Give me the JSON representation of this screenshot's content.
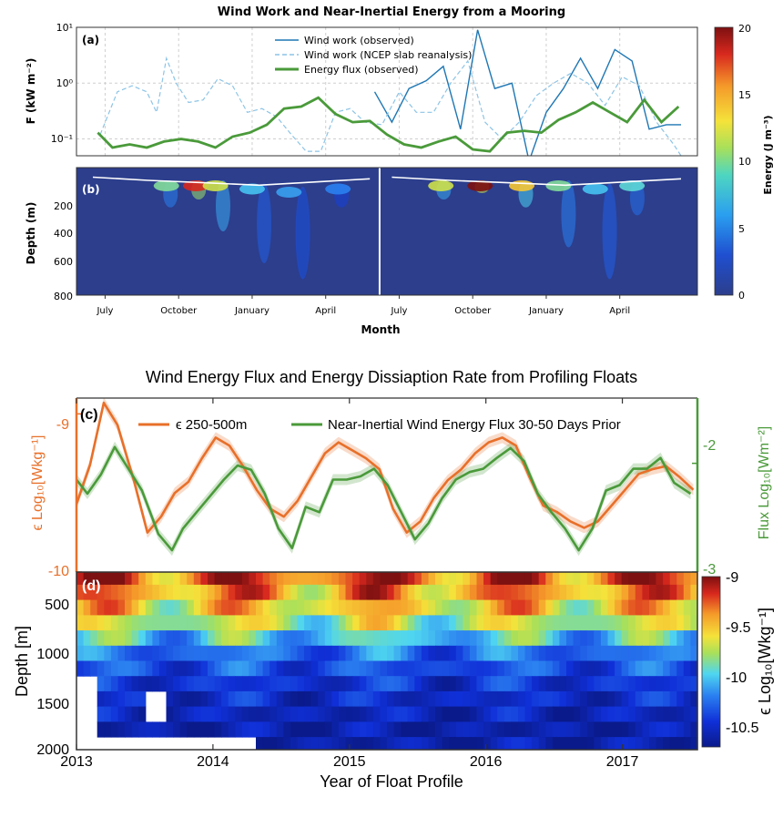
{
  "top_figure": {
    "title": "Wind Work and Near-Inertial Energy from a Mooring",
    "panel_a_letter": "(a)",
    "panel_b_letter": "(b)",
    "a_ylabel": "F (kW m⁻²)",
    "a_ytick_labels": [
      "10¹",
      "10⁰",
      "10⁻¹"
    ],
    "b_ylabel": "Depth (m)",
    "b_ytick_labels": [
      "200",
      "400",
      "600",
      "800"
    ],
    "xlabel": "Month",
    "month_labels": [
      "July",
      "October",
      "January",
      "April",
      "July",
      "October",
      "January",
      "April"
    ],
    "colorbar_label": "Energy (J m⁻³)",
    "colorbar_ticks": [
      "20",
      "15",
      "10",
      "5",
      "0"
    ],
    "legend": [
      "Wind work (observed)",
      "Wind work (NCEP slab reanalysis)",
      "Energy flux (observed)"
    ],
    "colors": {
      "wind_obs": "#1f77b4",
      "wind_ncep": "#8cc4e6",
      "energy_flux": "#4a9a3a",
      "field_bg": "#2c3e8c"
    }
  },
  "bottom_figure": {
    "title": "Wind Energy Flux and Energy Dissiaption Rate from Profiling Floats",
    "panel_c_letter": "(c)",
    "panel_d_letter": "(d)",
    "c_left_ylabel": "ϵ Log₁₀[Wkg⁻¹]",
    "c_right_ylabel": "Flux Log₁₀[Wm⁻²]",
    "c_left_ticks": [
      "-9",
      "-10"
    ],
    "c_right_ticks": [
      "-2",
      "-3"
    ],
    "legend": [
      "ϵ 250-500m",
      "Near-Inertial Wind Energy Flux 30-50 Days Prior"
    ],
    "d_ylabel": "Depth [m]",
    "d_ytick_labels": [
      "500",
      "1000",
      "1500",
      "2000"
    ],
    "xlabel": "Year of Float Profile",
    "year_labels": [
      "2013",
      "2014",
      "2015",
      "2016",
      "2017"
    ],
    "colorbar_label": "ϵ Log₁₀[Wkg⁻¹]",
    "colorbar_ticks": [
      "-9",
      "-9.5",
      "-10",
      "-10.5"
    ],
    "colors": {
      "epsilon": "#e8702a",
      "flux": "#4a9a3a"
    }
  },
  "chart_data": [
    {
      "type": "line",
      "panel": "(a)",
      "title": "Wind Work and Near-Inertial Energy from a Mooring",
      "ylabel": "F (kW m^-2)",
      "yscale": "log",
      "ylim": [
        0.05,
        10
      ],
      "grid": true,
      "legend_position": "top-center",
      "x_unit": "month index (0 = start of July, year 1)",
      "series": [
        {
          "name": "Wind work (observed)",
          "x": [
            11.5,
            12.2,
            12.9,
            13.6,
            14.3,
            15.0,
            15.7,
            16.4,
            17.1,
            17.8,
            18.5,
            19.2,
            19.9,
            20.6,
            21.3,
            22.0,
            22.7,
            23.4,
            24.0
          ],
          "y": [
            0.7,
            0.2,
            0.8,
            1.1,
            2.0,
            0.15,
            9.0,
            0.8,
            1.0,
            0.04,
            0.3,
            0.8,
            2.8,
            0.8,
            4.0,
            2.5,
            0.15,
            0.18,
            0.18
          ]
        },
        {
          "name": "Wind work (NCEP slab reanalysis)",
          "x": [
            0.3,
            1.0,
            1.6,
            2.2,
            2.6,
            3.0,
            3.4,
            3.9,
            4.5,
            5.1,
            5.7,
            6.3,
            6.9,
            7.5,
            8.1,
            8.7,
            9.3,
            9.9,
            10.5,
            11.1,
            11.8,
            12.5,
            13.2,
            13.9,
            14.6,
            15.3,
            16.0,
            16.7,
            17.4,
            18.1,
            18.8,
            19.5,
            20.2,
            20.9,
            21.6,
            22.3,
            23.0,
            23.7,
            24.0
          ],
          "y": [
            0.12,
            0.7,
            0.9,
            0.7,
            0.3,
            2.8,
            1.0,
            0.45,
            0.5,
            1.2,
            0.9,
            0.3,
            0.35,
            0.25,
            0.12,
            0.06,
            0.06,
            0.3,
            0.35,
            0.2,
            0.18,
            0.7,
            0.3,
            0.3,
            1.0,
            2.5,
            0.2,
            0.1,
            0.2,
            0.6,
            1.0,
            1.5,
            1.0,
            0.4,
            1.3,
            0.9,
            0.2,
            0.08,
            0.05
          ]
        },
        {
          "name": "Energy flux (observed)",
          "x": [
            0.2,
            0.8,
            1.5,
            2.2,
            2.9,
            3.6,
            4.3,
            5.0,
            5.7,
            6.4,
            7.1,
            7.8,
            8.5,
            9.2,
            9.9,
            10.6,
            11.3,
            12.0,
            12.7,
            13.4,
            14.1,
            14.8,
            15.5,
            16.2,
            16.9,
            17.6,
            18.3,
            19.0,
            19.7,
            20.4,
            21.1,
            21.8,
            22.5,
            23.2,
            23.9
          ],
          "y": [
            0.13,
            0.07,
            0.08,
            0.07,
            0.09,
            0.1,
            0.09,
            0.07,
            0.11,
            0.13,
            0.18,
            0.35,
            0.38,
            0.55,
            0.28,
            0.2,
            0.21,
            0.12,
            0.08,
            0.07,
            0.09,
            0.11,
            0.065,
            0.06,
            0.13,
            0.14,
            0.13,
            0.22,
            0.3,
            0.45,
            0.3,
            0.2,
            0.5,
            0.2,
            0.38
          ]
        }
      ]
    },
    {
      "type": "heatmap",
      "panel": "(b)",
      "ylabel": "Depth (m)",
      "ylim": [
        800,
        0
      ],
      "colorbar": {
        "label": "Energy (J m^-3)",
        "range": [
          0,
          20
        ],
        "colormap": "jet"
      },
      "background_energy": 2,
      "mixed_layer_depth_m": [
        60,
        80,
        95,
        110,
        90,
        70
      ],
      "high_energy_events": [
        {
          "month": 3.0,
          "depth_top": 80,
          "depth_bottom": 250,
          "energy": 10
        },
        {
          "month": 4.2,
          "depth_top": 80,
          "depth_bottom": 200,
          "energy": 18
        },
        {
          "month": 5.0,
          "depth_top": 80,
          "depth_bottom": 400,
          "energy": 12
        },
        {
          "month": 6.5,
          "depth_top": 100,
          "depth_bottom": 600,
          "energy": 8
        },
        {
          "month": 8.0,
          "depth_top": 120,
          "depth_bottom": 700,
          "energy": 7
        },
        {
          "month": 10.0,
          "depth_top": 100,
          "depth_bottom": 250,
          "energy": 6
        },
        {
          "month": 14.2,
          "depth_top": 80,
          "depth_bottom": 200,
          "energy": 12
        },
        {
          "month": 15.8,
          "depth_top": 80,
          "depth_bottom": 160,
          "energy": 20
        },
        {
          "month": 17.5,
          "depth_top": 80,
          "depth_bottom": 250,
          "energy": 14
        },
        {
          "month": 19.0,
          "depth_top": 80,
          "depth_bottom": 500,
          "energy": 10
        },
        {
          "month": 20.5,
          "depth_top": 100,
          "depth_bottom": 700,
          "energy": 8
        },
        {
          "month": 22.0,
          "depth_top": 80,
          "depth_bottom": 300,
          "energy": 9
        }
      ]
    },
    {
      "type": "line",
      "panel": "(c)",
      "title": "Wind Energy Flux and Energy Dissiaption Rate from Profiling Floats",
      "xlim": [
        2013.0,
        2017.55
      ],
      "left_ylabel": "ϵ Log10[Wkg^-1]",
      "left_ylim": [
        -10.0,
        -8.9
      ],
      "right_ylabel": "Flux Log10[Wm^-2]",
      "right_ylim": [
        -3.0,
        -1.4
      ],
      "legend_position": "top",
      "series": [
        {
          "name": "ϵ 250-500m",
          "axis": "left",
          "x": [
            2013.0,
            2013.1,
            2013.2,
            2013.3,
            2013.42,
            2013.52,
            2013.62,
            2013.72,
            2013.82,
            2013.92,
            2014.02,
            2014.12,
            2014.22,
            2014.32,
            2014.42,
            2014.52,
            2014.62,
            2014.72,
            2014.82,
            2014.92,
            2015.02,
            2015.12,
            2015.22,
            2015.32,
            2015.42,
            2015.52,
            2015.62,
            2015.72,
            2015.82,
            2015.92,
            2016.02,
            2016.12,
            2016.22,
            2016.32,
            2016.42,
            2016.52,
            2016.62,
            2016.72,
            2016.82,
            2016.92,
            2017.02,
            2017.12,
            2017.22,
            2017.32,
            2017.42,
            2017.52
          ],
          "y": [
            -9.57,
            -9.32,
            -8.93,
            -9.07,
            -9.42,
            -9.75,
            -9.65,
            -9.5,
            -9.43,
            -9.28,
            -9.15,
            -9.2,
            -9.33,
            -9.48,
            -9.6,
            -9.65,
            -9.55,
            -9.4,
            -9.25,
            -9.18,
            -9.23,
            -9.28,
            -9.35,
            -9.6,
            -9.75,
            -9.68,
            -9.53,
            -9.42,
            -9.35,
            -9.25,
            -9.18,
            -9.15,
            -9.2,
            -9.4,
            -9.58,
            -9.62,
            -9.68,
            -9.72,
            -9.68,
            -9.58,
            -9.48,
            -9.38,
            -9.35,
            -9.33,
            -9.4,
            -9.48
          ]
        },
        {
          "name": "Near-Inertial Wind Energy Flux 30-50 Days Prior",
          "axis": "right",
          "x": [
            2013.0,
            2013.08,
            2013.18,
            2013.28,
            2013.38,
            2013.48,
            2013.6,
            2013.7,
            2013.78,
            2013.88,
            2013.98,
            2014.08,
            2014.18,
            2014.28,
            2014.38,
            2014.48,
            2014.58,
            2014.68,
            2014.78,
            2014.88,
            2014.98,
            2015.08,
            2015.18,
            2015.28,
            2015.38,
            2015.48,
            2015.58,
            2015.68,
            2015.78,
            2015.88,
            2015.98,
            2016.08,
            2016.18,
            2016.28,
            2016.38,
            2016.48,
            2016.58,
            2016.68,
            2016.78,
            2016.88,
            2016.98,
            2017.08,
            2017.18,
            2017.28,
            2017.38,
            2017.5
          ],
          "y": [
            -2.15,
            -2.28,
            -2.1,
            -1.85,
            -2.05,
            -2.25,
            -2.65,
            -2.8,
            -2.6,
            -2.45,
            -2.3,
            -2.15,
            -2.02,
            -2.06,
            -2.28,
            -2.6,
            -2.78,
            -2.4,
            -2.45,
            -2.15,
            -2.15,
            -2.12,
            -2.05,
            -2.2,
            -2.45,
            -2.7,
            -2.55,
            -2.32,
            -2.15,
            -2.08,
            -2.05,
            -1.95,
            -1.86,
            -1.98,
            -2.28,
            -2.45,
            -2.6,
            -2.8,
            -2.6,
            -2.25,
            -2.2,
            -2.05,
            -2.05,
            -1.95,
            -2.18,
            -2.28
          ]
        }
      ]
    },
    {
      "type": "heatmap",
      "panel": "(d)",
      "xlabel": "Year of Float Profile",
      "ylabel": "Depth [m]",
      "xlim": [
        2013.0,
        2017.55
      ],
      "ylim": [
        2000,
        250
      ],
      "colorbar": {
        "label": "ϵ Log10[Wkg^-1]",
        "range": [
          -10.7,
          -9.0
        ],
        "colormap": "jet"
      },
      "depth_bins_m": [
        300,
        450,
        600,
        750,
        900,
        1050,
        1200,
        1350,
        1500,
        1650,
        1800,
        1950
      ],
      "mean_by_depth": [
        -9.25,
        -9.4,
        -9.55,
        -9.75,
        -10.0,
        -10.25,
        -10.35,
        -10.45,
        -10.5,
        -10.55,
        -10.6,
        -10.6
      ],
      "seasonal_amplitude_by_depth": [
        0.3,
        0.28,
        0.25,
        0.22,
        0.2,
        0.15,
        0.12,
        0.1,
        0.08,
        0.06,
        0.05,
        0.05
      ],
      "missing_regions": [
        {
          "x_range": [
            2013.0,
            2013.17
          ],
          "depth_range": [
            1350,
            2000
          ]
        },
        {
          "x_range": [
            2013.17,
            2014.33
          ],
          "depth_range": [
            1850,
            2000
          ]
        },
        {
          "x_range": [
            2013.5,
            2013.67
          ],
          "depth_range": [
            1450,
            1650
          ]
        }
      ]
    }
  ]
}
